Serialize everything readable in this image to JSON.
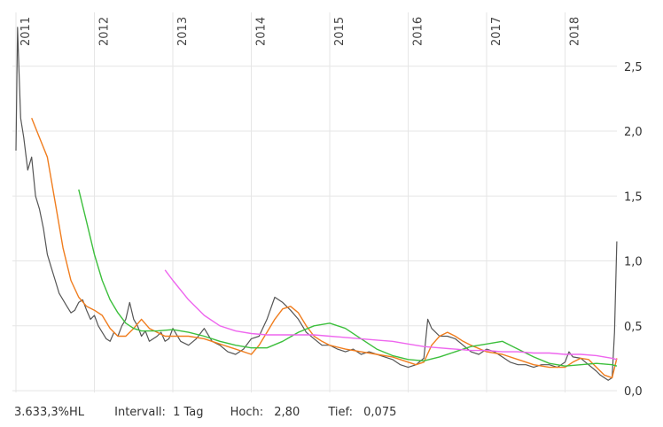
{
  "chart_data": {
    "type": "line",
    "x_axis_labels": [
      "2011",
      "2012",
      "2013",
      "2014",
      "2015",
      "2016",
      "2017",
      "2018"
    ],
    "ylim": [
      0,
      2.8
    ],
    "y_ticks": [
      0.0,
      0.5,
      1.0,
      1.5,
      2.0,
      2.5
    ],
    "y_tick_labels": [
      "0,0",
      "0,5",
      "1,0",
      "1,5",
      "2,0",
      "2,5"
    ],
    "grid": true,
    "series": [
      {
        "role": "price",
        "color": "#555555",
        "x": [
          2011.0,
          2011.02,
          2011.04,
          2011.06,
          2011.1,
          2011.15,
          2011.2,
          2011.25,
          2011.3,
          2011.35,
          2011.4,
          2011.45,
          2011.5,
          2011.55,
          2011.6,
          2011.65,
          2011.7,
          2011.75,
          2011.8,
          2011.85,
          2011.9,
          2011.95,
          2012.0,
          2012.05,
          2012.1,
          2012.15,
          2012.2,
          2012.25,
          2012.3,
          2012.35,
          2012.4,
          2012.45,
          2012.5,
          2012.55,
          2012.6,
          2012.65,
          2012.7,
          2012.75,
          2012.8,
          2012.85,
          2012.9,
          2012.95,
          2013.0,
          2013.1,
          2013.2,
          2013.3,
          2013.4,
          2013.5,
          2013.6,
          2013.7,
          2013.8,
          2013.9,
          2014.0,
          2014.1,
          2014.2,
          2014.3,
          2014.4,
          2014.5,
          2014.6,
          2014.7,
          2014.8,
          2014.9,
          2015.0,
          2015.1,
          2015.2,
          2015.3,
          2015.4,
          2015.5,
          2015.6,
          2015.7,
          2015.8,
          2015.9,
          2016.0,
          2016.1,
          2016.2,
          2016.25,
          2016.3,
          2016.4,
          2016.5,
          2016.6,
          2016.7,
          2016.8,
          2016.9,
          2017.0,
          2017.1,
          2017.2,
          2017.3,
          2017.4,
          2017.5,
          2017.6,
          2017.7,
          2017.8,
          2017.9,
          2018.0,
          2018.05,
          2018.1,
          2018.2,
          2018.3,
          2018.4,
          2018.45,
          2018.5,
          2018.55,
          2018.6,
          2018.63,
          2018.66
        ],
        "y": [
          1.85,
          2.8,
          2.45,
          2.1,
          1.95,
          1.7,
          1.8,
          1.5,
          1.4,
          1.25,
          1.05,
          0.95,
          0.85,
          0.75,
          0.7,
          0.65,
          0.6,
          0.62,
          0.68,
          0.7,
          0.62,
          0.55,
          0.58,
          0.5,
          0.45,
          0.4,
          0.38,
          0.45,
          0.42,
          0.5,
          0.55,
          0.68,
          0.55,
          0.5,
          0.42,
          0.46,
          0.38,
          0.4,
          0.42,
          0.45,
          0.38,
          0.4,
          0.48,
          0.38,
          0.35,
          0.4,
          0.48,
          0.38,
          0.35,
          0.3,
          0.28,
          0.32,
          0.4,
          0.42,
          0.55,
          0.72,
          0.68,
          0.62,
          0.55,
          0.45,
          0.4,
          0.35,
          0.35,
          0.32,
          0.3,
          0.32,
          0.28,
          0.3,
          0.28,
          0.26,
          0.24,
          0.2,
          0.18,
          0.2,
          0.25,
          0.55,
          0.48,
          0.42,
          0.42,
          0.4,
          0.35,
          0.3,
          0.28,
          0.32,
          0.3,
          0.26,
          0.22,
          0.2,
          0.2,
          0.18,
          0.2,
          0.2,
          0.18,
          0.22,
          0.3,
          0.26,
          0.25,
          0.2,
          0.15,
          0.12,
          0.1,
          0.08,
          0.1,
          0.45,
          1.15
        ]
      },
      {
        "role": "moving-average-short",
        "color": "#f07d1e",
        "x": [
          2011.2,
          2011.3,
          2011.4,
          2011.5,
          2011.6,
          2011.7,
          2011.8,
          2011.9,
          2012.0,
          2012.1,
          2012.2,
          2012.3,
          2012.4,
          2012.5,
          2012.6,
          2012.7,
          2012.8,
          2012.9,
          2013.0,
          2013.2,
          2013.4,
          2013.6,
          2013.8,
          2014.0,
          2014.1,
          2014.2,
          2014.3,
          2014.4,
          2014.5,
          2014.6,
          2014.7,
          2014.8,
          2014.9,
          2015.0,
          2015.2,
          2015.4,
          2015.6,
          2015.8,
          2016.0,
          2016.1,
          2016.2,
          2016.3,
          2016.4,
          2016.5,
          2016.6,
          2016.7,
          2016.8,
          2017.0,
          2017.2,
          2017.4,
          2017.6,
          2017.8,
          2018.0,
          2018.1,
          2018.2,
          2018.3,
          2018.4,
          2018.5,
          2018.6,
          2018.66
        ],
        "y": [
          2.1,
          1.95,
          1.8,
          1.45,
          1.1,
          0.85,
          0.72,
          0.65,
          0.62,
          0.58,
          0.48,
          0.42,
          0.42,
          0.48,
          0.55,
          0.48,
          0.45,
          0.42,
          0.42,
          0.42,
          0.4,
          0.36,
          0.32,
          0.28,
          0.35,
          0.45,
          0.55,
          0.63,
          0.65,
          0.6,
          0.5,
          0.42,
          0.38,
          0.35,
          0.32,
          0.3,
          0.28,
          0.26,
          0.22,
          0.2,
          0.22,
          0.35,
          0.42,
          0.45,
          0.42,
          0.38,
          0.35,
          0.3,
          0.28,
          0.24,
          0.2,
          0.18,
          0.18,
          0.22,
          0.25,
          0.24,
          0.18,
          0.12,
          0.1,
          0.25
        ]
      },
      {
        "role": "moving-average-medium",
        "color": "#3cbf3c",
        "x": [
          2011.8,
          2011.9,
          2012.0,
          2012.1,
          2012.2,
          2012.3,
          2012.4,
          2012.5,
          2012.6,
          2012.8,
          2013.0,
          2013.2,
          2013.4,
          2013.6,
          2013.8,
          2014.0,
          2014.2,
          2014.4,
          2014.6,
          2014.8,
          2015.0,
          2015.2,
          2015.4,
          2015.6,
          2015.8,
          2016.0,
          2016.2,
          2016.4,
          2016.6,
          2016.8,
          2017.0,
          2017.2,
          2017.4,
          2017.6,
          2017.8,
          2018.0,
          2018.2,
          2018.4,
          2018.6,
          2018.66
        ],
        "y": [
          1.55,
          1.3,
          1.05,
          0.85,
          0.7,
          0.6,
          0.52,
          0.48,
          0.46,
          0.46,
          0.47,
          0.45,
          0.42,
          0.38,
          0.35,
          0.33,
          0.33,
          0.38,
          0.45,
          0.5,
          0.52,
          0.48,
          0.4,
          0.32,
          0.27,
          0.24,
          0.23,
          0.26,
          0.3,
          0.34,
          0.36,
          0.38,
          0.32,
          0.26,
          0.21,
          0.19,
          0.2,
          0.21,
          0.2,
          0.19
        ]
      },
      {
        "role": "moving-average-long",
        "color": "#ee66ee",
        "x": [
          2012.9,
          2013.0,
          2013.2,
          2013.4,
          2013.6,
          2013.8,
          2014.0,
          2014.2,
          2014.4,
          2014.6,
          2014.8,
          2015.0,
          2015.2,
          2015.4,
          2015.6,
          2015.8,
          2016.0,
          2016.2,
          2016.4,
          2016.6,
          2016.8,
          2017.0,
          2017.2,
          2017.4,
          2017.6,
          2017.8,
          2018.0,
          2018.2,
          2018.4,
          2018.6,
          2018.66
        ],
        "y": [
          0.93,
          0.85,
          0.7,
          0.58,
          0.5,
          0.46,
          0.44,
          0.43,
          0.43,
          0.43,
          0.43,
          0.42,
          0.41,
          0.4,
          0.39,
          0.38,
          0.36,
          0.34,
          0.33,
          0.32,
          0.31,
          0.31,
          0.3,
          0.3,
          0.29,
          0.29,
          0.28,
          0.28,
          0.27,
          0.25,
          0.24
        ]
      }
    ]
  },
  "footer": {
    "change": "3.633,3%HL",
    "interval_label": "Intervall:",
    "interval_value": "1 Tag",
    "high_label": "Hoch:",
    "high_value": "2,80",
    "low_label": "Tief:",
    "low_value": "0,075"
  }
}
